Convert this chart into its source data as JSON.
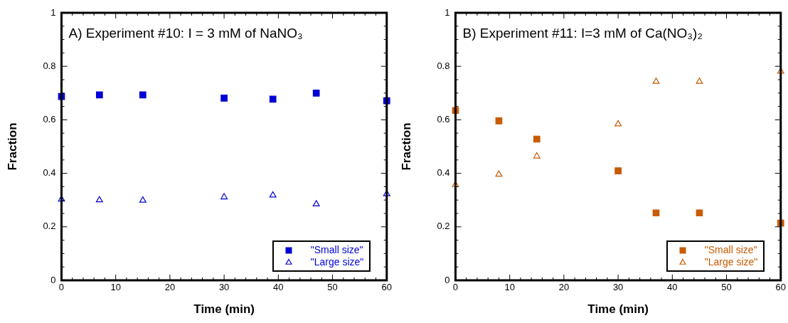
{
  "chart_data": [
    {
      "type": "scatter",
      "title": "A) Experiment #10: I = 3 mM of NaNO₃",
      "xlabel": "Time (min)",
      "ylabel": "Fraction",
      "x": [
        0,
        7,
        15,
        30,
        39,
        47,
        60
      ],
      "series": [
        {
          "name": "\"Small size\"",
          "color": "#0000d6",
          "marker": "square",
          "values": [
            0.687,
            0.693,
            0.693,
            0.681,
            0.677,
            0.7,
            0.671
          ]
        },
        {
          "name": "\"Large size\"",
          "color": "#0000d6",
          "marker": "triangle",
          "values": [
            0.303,
            0.3,
            0.299,
            0.311,
            0.318,
            0.285,
            0.323
          ]
        }
      ],
      "xlim": [
        0,
        60
      ],
      "ylim": [
        0,
        1
      ],
      "xticks": [
        0,
        {
          "value": 2,
          "label": null
        },
        {
          "value": 4,
          "label": null
        },
        {
          "value": 6,
          "label": null
        },
        {
          "value": 8,
          "label": null
        },
        10,
        {
          "value": 12,
          "label": null
        },
        {
          "value": 14,
          "label": null
        },
        {
          "value": 16,
          "label": null
        },
        {
          "value": 18,
          "label": null
        },
        20,
        {
          "value": 22,
          "label": null
        },
        {
          "value": 24,
          "label": null
        },
        {
          "value": 26,
          "label": null
        },
        {
          "value": 28,
          "label": null
        },
        30,
        {
          "value": 32,
          "label": null
        },
        {
          "value": 34,
          "label": null
        },
        {
          "value": 36,
          "label": null
        },
        {
          "value": 38,
          "label": null
        },
        40,
        {
          "value": 42,
          "label": null
        },
        {
          "value": 44,
          "label": null
        },
        {
          "value": 46,
          "label": null
        },
        {
          "value": 48,
          "label": null
        },
        50,
        {
          "value": 52,
          "label": null
        },
        {
          "value": 54,
          "label": null
        },
        {
          "value": 56,
          "label": null
        },
        {
          "value": 58,
          "label": null
        },
        60
      ],
      "yticks": [
        0,
        {
          "value": 0.05,
          "label": null
        },
        {
          "value": 0.1,
          "label": null
        },
        {
          "value": 0.15,
          "label": null
        },
        0.2,
        {
          "value": 0.25,
          "label": null
        },
        {
          "value": 0.3,
          "label": null
        },
        {
          "value": 0.35,
          "label": null
        },
        0.4,
        {
          "value": 0.45,
          "label": null
        },
        {
          "value": 0.5,
          "label": null
        },
        {
          "value": 0.55,
          "label": null
        },
        0.6,
        {
          "value": 0.65,
          "label": null
        },
        {
          "value": 0.7,
          "label": null
        },
        {
          "value": 0.75,
          "label": null
        },
        0.8,
        {
          "value": 0.85,
          "label": null
        },
        {
          "value": 0.9,
          "label": null
        },
        {
          "value": 0.95,
          "label": null
        },
        1
      ],
      "grid": false,
      "legend": "bottom right"
    },
    {
      "type": "scatter",
      "title": "B) Experiment #11: I=3 mM of Ca(NO₃)₂",
      "xlabel": "Time (min)",
      "ylabel": "Fraction",
      "x": [
        0,
        8,
        15,
        30,
        37,
        45,
        60
      ],
      "series": [
        {
          "name": "\"Small size\"",
          "color": "#c85a00",
          "marker": "square",
          "values": [
            0.635,
            0.596,
            0.528,
            0.409,
            0.252,
            0.252,
            0.214
          ]
        },
        {
          "name": "\"Large size\"",
          "color": "#c85a00",
          "marker": "triangle",
          "values": [
            0.357,
            0.396,
            0.464,
            0.584,
            0.743,
            0.743,
            0.781
          ]
        }
      ],
      "xlim": [
        0,
        60
      ],
      "ylim": [
        0,
        1
      ],
      "xticks": [
        0,
        {
          "value": 2,
          "label": null
        },
        {
          "value": 4,
          "label": null
        },
        {
          "value": 6,
          "label": null
        },
        {
          "value": 8,
          "label": null
        },
        10,
        {
          "value": 12,
          "label": null
        },
        {
          "value": 14,
          "label": null
        },
        {
          "value": 16,
          "label": null
        },
        {
          "value": 18,
          "label": null
        },
        20,
        {
          "value": 22,
          "label": null
        },
        {
          "value": 24,
          "label": null
        },
        {
          "value": 26,
          "label": null
        },
        {
          "value": 28,
          "label": null
        },
        30,
        {
          "value": 32,
          "label": null
        },
        {
          "value": 34,
          "label": null
        },
        {
          "value": 36,
          "label": null
        },
        {
          "value": 38,
          "label": null
        },
        40,
        {
          "value": 42,
          "label": null
        },
        {
          "value": 44,
          "label": null
        },
        {
          "value": 46,
          "label": null
        },
        {
          "value": 48,
          "label": null
        },
        50,
        {
          "value": 52,
          "label": null
        },
        {
          "value": 54,
          "label": null
        },
        {
          "value": 56,
          "label": null
        },
        {
          "value": 58,
          "label": null
        },
        60
      ],
      "yticks": [
        0,
        {
          "value": 0.05,
          "label": null
        },
        {
          "value": 0.1,
          "label": null
        },
        {
          "value": 0.15,
          "label": null
        },
        0.2,
        {
          "value": 0.25,
          "label": null
        },
        {
          "value": 0.3,
          "label": null
        },
        {
          "value": 0.35,
          "label": null
        },
        0.4,
        {
          "value": 0.45,
          "label": null
        },
        {
          "value": 0.5,
          "label": null
        },
        {
          "value": 0.55,
          "label": null
        },
        0.6,
        {
          "value": 0.65,
          "label": null
        },
        {
          "value": 0.7,
          "label": null
        },
        {
          "value": 0.75,
          "label": null
        },
        0.8,
        {
          "value": 0.85,
          "label": null
        },
        {
          "value": 0.9,
          "label": null
        },
        {
          "value": 0.95,
          "label": null
        },
        1
      ],
      "grid": false,
      "legend": "bottom right"
    }
  ]
}
